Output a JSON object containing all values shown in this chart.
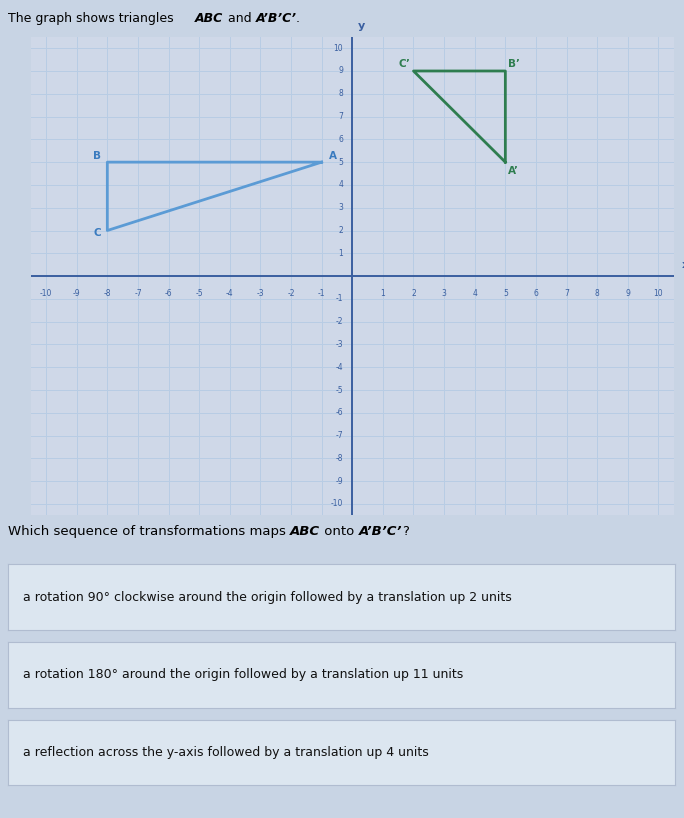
{
  "triangle_ABC": {
    "A": [
      -1,
      5
    ],
    "B": [
      -8,
      5
    ],
    "C": [
      -8,
      2
    ],
    "color": "#5b9bd5",
    "label_color": "#3a7bbf"
  },
  "triangle_A1B1C1": {
    "A1": [
      5,
      5
    ],
    "B1": [
      5,
      9
    ],
    "C1": [
      2,
      9
    ],
    "color": "#2e7d4f",
    "label_color": "#2e7d4f"
  },
  "xlim": [
    -10.5,
    10.5
  ],
  "ylim": [
    -10.5,
    10.5
  ],
  "grid_color": "#b8cce4",
  "axis_color": "#3a5fa0",
  "background_color": "#cfd8e8",
  "fig_bg": "#c8d4e4",
  "question_text": "Which sequence of transformations maps ABC onto A’B’C’?",
  "options": [
    "a rotation 90° clockwise around the origin followed by a translation up 2 units",
    "a rotation 180° around the origin followed by a translation up 11 units",
    "a reflection across the y-axis followed by a translation up 4 units"
  ],
  "option_bg": "#dce6f0",
  "fig_width": 6.84,
  "fig_height": 8.18
}
